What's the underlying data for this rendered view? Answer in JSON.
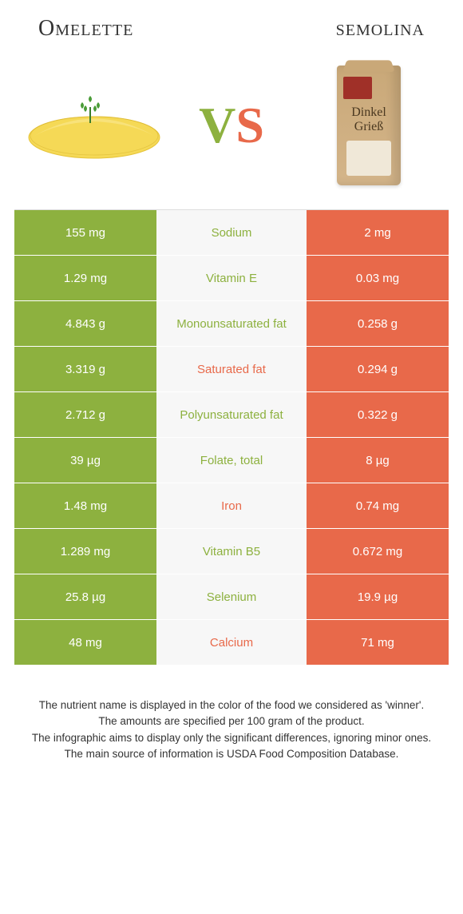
{
  "titles": {
    "left": "Omelette",
    "right": "semolina"
  },
  "vs": {
    "v": "V",
    "s": "S"
  },
  "colors": {
    "left": "#8db13f",
    "right": "#e8694a",
    "mid_bg": "#f7f7f7",
    "row_border": "#ffffff"
  },
  "bag_text": {
    "line1": "Dinkel",
    "line2": "Grieß"
  },
  "rows": [
    {
      "left": "155 mg",
      "label": "Sodium",
      "right": "2 mg",
      "winner": "left"
    },
    {
      "left": "1.29 mg",
      "label": "Vitamin E",
      "right": "0.03 mg",
      "winner": "left"
    },
    {
      "left": "4.843 g",
      "label": "Monounsaturated fat",
      "right": "0.258 g",
      "winner": "left"
    },
    {
      "left": "3.319 g",
      "label": "Saturated fat",
      "right": "0.294 g",
      "winner": "right"
    },
    {
      "left": "2.712 g",
      "label": "Polyunsaturated fat",
      "right": "0.322 g",
      "winner": "left"
    },
    {
      "left": "39 µg",
      "label": "Folate, total",
      "right": "8 µg",
      "winner": "left"
    },
    {
      "left": "1.48 mg",
      "label": "Iron",
      "right": "0.74 mg",
      "winner": "right"
    },
    {
      "left": "1.289 mg",
      "label": "Vitamin B5",
      "right": "0.672 mg",
      "winner": "left"
    },
    {
      "left": "25.8 µg",
      "label": "Selenium",
      "right": "19.9 µg",
      "winner": "left"
    },
    {
      "left": "48 mg",
      "label": "Calcium",
      "right": "71 mg",
      "winner": "right"
    }
  ],
  "footer": [
    "The nutrient name is displayed in the color of the food we considered as 'winner'.",
    "The amounts are specified per 100 gram of the product.",
    "The infographic aims to display only the significant differences, ignoring minor ones.",
    "The main source of information is USDA Food Composition Database."
  ]
}
